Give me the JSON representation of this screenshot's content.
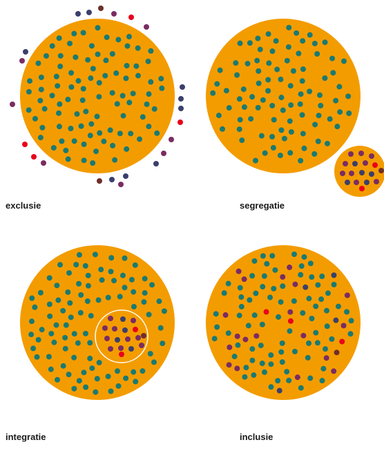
{
  "colors": {
    "circle": "#f39c00",
    "teal": "#1a7a72",
    "navy": "#3b3f6b",
    "purple": "#7a2c63",
    "red": "#e8001c",
    "brown": "#6e2f2a",
    "ring": "#ffffff"
  },
  "panels": [
    {
      "id": "exclusie",
      "label": "exclusie"
    },
    {
      "id": "segregatie",
      "label": "segregatie"
    },
    {
      "id": "integratie",
      "label": "integratie"
    },
    {
      "id": "inclusie",
      "label": "inclusie"
    }
  ]
}
